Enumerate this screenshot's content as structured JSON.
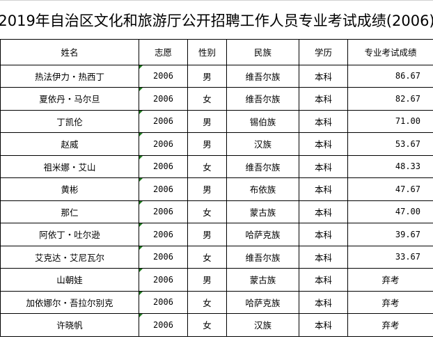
{
  "title": "2019年自治区文化和旅游厅公开招聘工作人员专业考试成绩(2006)",
  "headers": [
    "姓名",
    "志愿",
    "性别",
    "民族",
    "学历",
    "专业考试成绩"
  ],
  "rows": [
    [
      "热法伊力・热西丁",
      "2006",
      "男",
      "维吾尔族",
      "本科",
      "86.67"
    ],
    [
      "夏依丹・马尔旦",
      "2006",
      "女",
      "维吾尔族",
      "本科",
      "82.67"
    ],
    [
      "丁凯伦",
      "2006",
      "男",
      "锡伯族",
      "本科",
      "71.00"
    ],
    [
      "赵威",
      "2006",
      "男",
      "汉族",
      "本科",
      "53.67"
    ],
    [
      "祖米娜・艾山",
      "2006",
      "女",
      "维吾尔族",
      "本科",
      "48.33"
    ],
    [
      "黄彬",
      "2006",
      "男",
      "布依族",
      "本科",
      "47.67"
    ],
    [
      "那仁",
      "2006",
      "女",
      "蒙古族",
      "本科",
      "47.00"
    ],
    [
      "阿依丁・吐尔逊",
      "2006",
      "男",
      "哈萨克族",
      "本科",
      "39.67"
    ],
    [
      "艾克达・艾尼瓦尔",
      "2006",
      "女",
      "维吾尔族",
      "本科",
      "33.67"
    ],
    [
      "山朝娃",
      "2006",
      "男",
      "蒙古族",
      "本科",
      "弃考"
    ],
    [
      "加依娜尔・吾拉尔别克",
      "2006",
      "女",
      "哈萨克族",
      "本科",
      "弃考"
    ],
    [
      "许晓帆",
      "2006",
      "女",
      "汉族",
      "本科",
      "弃考"
    ]
  ],
  "colors": {
    "border": "#000000",
    "comment_marker": "#1e7b1e"
  }
}
